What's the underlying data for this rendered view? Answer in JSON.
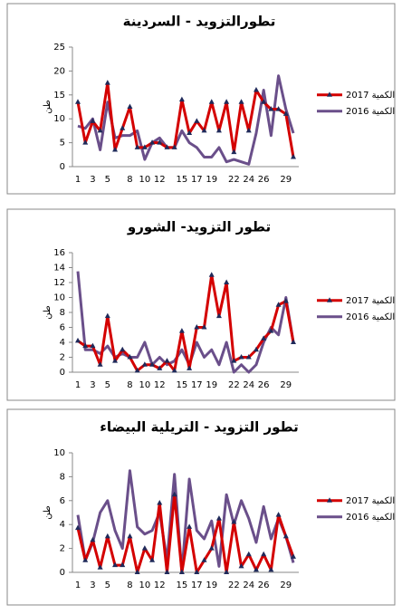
{
  "chart_data": [
    {
      "type": "line",
      "title": "تطورالتزويد - السردينة",
      "y_label": "طن",
      "categories": [
        1,
        null,
        3,
        null,
        5,
        null,
        null,
        8,
        null,
        10,
        null,
        12,
        null,
        null,
        15,
        null,
        17,
        null,
        19,
        null,
        null,
        22,
        null,
        24,
        null,
        26,
        null,
        null,
        29,
        null
      ],
      "ylim": [
        0,
        25
      ],
      "yticks": [
        0,
        5,
        10,
        15,
        20,
        25
      ],
      "grid": false,
      "legend": "right",
      "series": [
        {
          "name": "الكمية 2017",
          "color": "#d40000",
          "marker": "triangle",
          "values": [
            13.5,
            5,
            9.5,
            7.5,
            17.5,
            3.5,
            8,
            12.5,
            4,
            4,
            5,
            5,
            4,
            4,
            14,
            7,
            9.5,
            7.5,
            13.5,
            7.5,
            13.5,
            3,
            13.5,
            7.5,
            16,
            13.5,
            12,
            12,
            11,
            2
          ]
        },
        {
          "name": "الكمية 2016",
          "color": "#6a4f8a",
          "values": [
            8.5,
            8,
            10,
            3.5,
            13.5,
            6,
            6.5,
            6.5,
            7.5,
            1.5,
            5,
            6,
            4,
            4,
            7.5,
            5,
            4,
            2,
            2,
            4,
            1,
            1.5,
            1,
            0.5,
            7,
            16,
            6.5,
            19,
            12,
            7
          ]
        }
      ]
    },
    {
      "type": "line",
      "title": "تطور التزويد- الشورو",
      "y_label": "طن",
      "categories": [
        1,
        null,
        3,
        null,
        5,
        null,
        null,
        8,
        null,
        10,
        null,
        12,
        null,
        null,
        15,
        null,
        17,
        null,
        19,
        null,
        null,
        22,
        null,
        24,
        null,
        26,
        null,
        null,
        29,
        null
      ],
      "ylim": [
        0,
        16
      ],
      "yticks": [
        0,
        2,
        4,
        6,
        8,
        10,
        12,
        14,
        16
      ],
      "grid": false,
      "legend": "right",
      "series": [
        {
          "name": "الكمية 2017",
          "color": "#d40000",
          "marker": "triangle",
          "values": [
            4.2,
            3.5,
            3.5,
            1,
            7.5,
            1.5,
            3,
            2,
            0.2,
            1,
            1,
            0.5,
            1.5,
            0.2,
            5.5,
            0.5,
            6,
            6,
            13,
            7.5,
            12,
            1.5,
            2,
            2,
            3,
            4.5,
            5.5,
            9,
            9.5,
            4
          ]
        },
        {
          "name": "الكمية 2016",
          "color": "#6a4f8a",
          "values": [
            13.5,
            3,
            3,
            2.5,
            3.5,
            2,
            2.5,
            2,
            2,
            4,
            1,
            2,
            1,
            1.5,
            3,
            1,
            4,
            2,
            3,
            1,
            4,
            0,
            1,
            0,
            1,
            4,
            6,
            5,
            10,
            4
          ]
        }
      ]
    },
    {
      "type": "line",
      "title": "تطور التزويد - التريلية البيضاء",
      "y_label": "طن",
      "categories": [
        1,
        null,
        3,
        null,
        5,
        null,
        null,
        8,
        null,
        10,
        null,
        12,
        null,
        null,
        15,
        null,
        17,
        null,
        19,
        null,
        null,
        22,
        null,
        24,
        null,
        26,
        null,
        null,
        29,
        null
      ],
      "ylim": [
        0,
        10
      ],
      "yticks": [
        0,
        2,
        4,
        6,
        8,
        10
      ],
      "grid": false,
      "legend": "right",
      "series": [
        {
          "name": "الكمية 2017",
          "color": "#d40000",
          "marker": "triangle",
          "values": [
            3.7,
            1,
            2.7,
            0.4,
            3,
            0.6,
            0.6,
            3,
            0,
            2,
            1,
            5.8,
            0,
            6.5,
            0,
            3.8,
            0,
            1,
            2,
            4.5,
            0,
            4.2,
            0.5,
            1.5,
            0.2,
            1.5,
            0.2,
            4.8,
            3,
            1.3
          ]
        },
        {
          "name": "الكمية 2016",
          "color": "#6a4f8a",
          "values": [
            4.8,
            1,
            2.5,
            5,
            6,
            3.5,
            2,
            8.5,
            3.8,
            3.2,
            3.5,
            5,
            1,
            8.2,
            0,
            7.8,
            3.5,
            2.8,
            4.3,
            0.5,
            6.5,
            4,
            6,
            4.5,
            2.5,
            5.5,
            2.8,
            4.5,
            3,
            0.8
          ]
        }
      ]
    }
  ]
}
